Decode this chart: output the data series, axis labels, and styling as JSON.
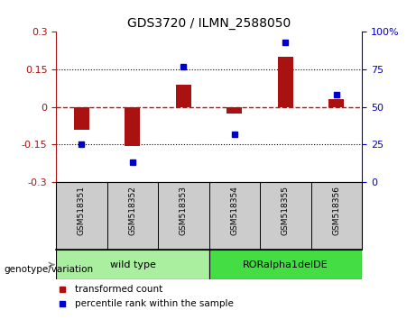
{
  "title": "GDS3720 / ILMN_2588050",
  "samples": [
    "GSM518351",
    "GSM518352",
    "GSM518353",
    "GSM518354",
    "GSM518355",
    "GSM518356"
  ],
  "transformed_count": [
    -0.09,
    -0.155,
    0.09,
    -0.025,
    0.2,
    0.03
  ],
  "percentile_rank": [
    25,
    13,
    77,
    32,
    93,
    58
  ],
  "groups": [
    {
      "label": "wild type",
      "indices": [
        0,
        1,
        2
      ],
      "color": "#aaeea0"
    },
    {
      "label": "RORalpha1delDE",
      "indices": [
        3,
        4,
        5
      ],
      "color": "#44dd44"
    }
  ],
  "ylim_left": [
    -0.3,
    0.3
  ],
  "ylim_right": [
    0,
    100
  ],
  "yticks_left": [
    -0.3,
    -0.15,
    0.0,
    0.15,
    0.3
  ],
  "ytick_labels_left": [
    "-0.3",
    "-0.15",
    "0",
    "0.15",
    "0.3"
  ],
  "yticks_right": [
    0,
    25,
    50,
    75,
    100
  ],
  "ytick_labels_right": [
    "0",
    "25",
    "50",
    "75",
    "100%"
  ],
  "bar_color": "#aa1111",
  "dot_color": "#0000cc",
  "hline_color": "#dd0000",
  "dotted_levels": [
    -0.15,
    0.15
  ],
  "legend_bar_label": "transformed count",
  "legend_dot_label": "percentile rank within the sample",
  "genotype_label": "genotype/variation",
  "bar_width": 0.3,
  "sample_bg_color": "#cccccc",
  "group_border_color": "#000000",
  "arrow_color": "#888888"
}
